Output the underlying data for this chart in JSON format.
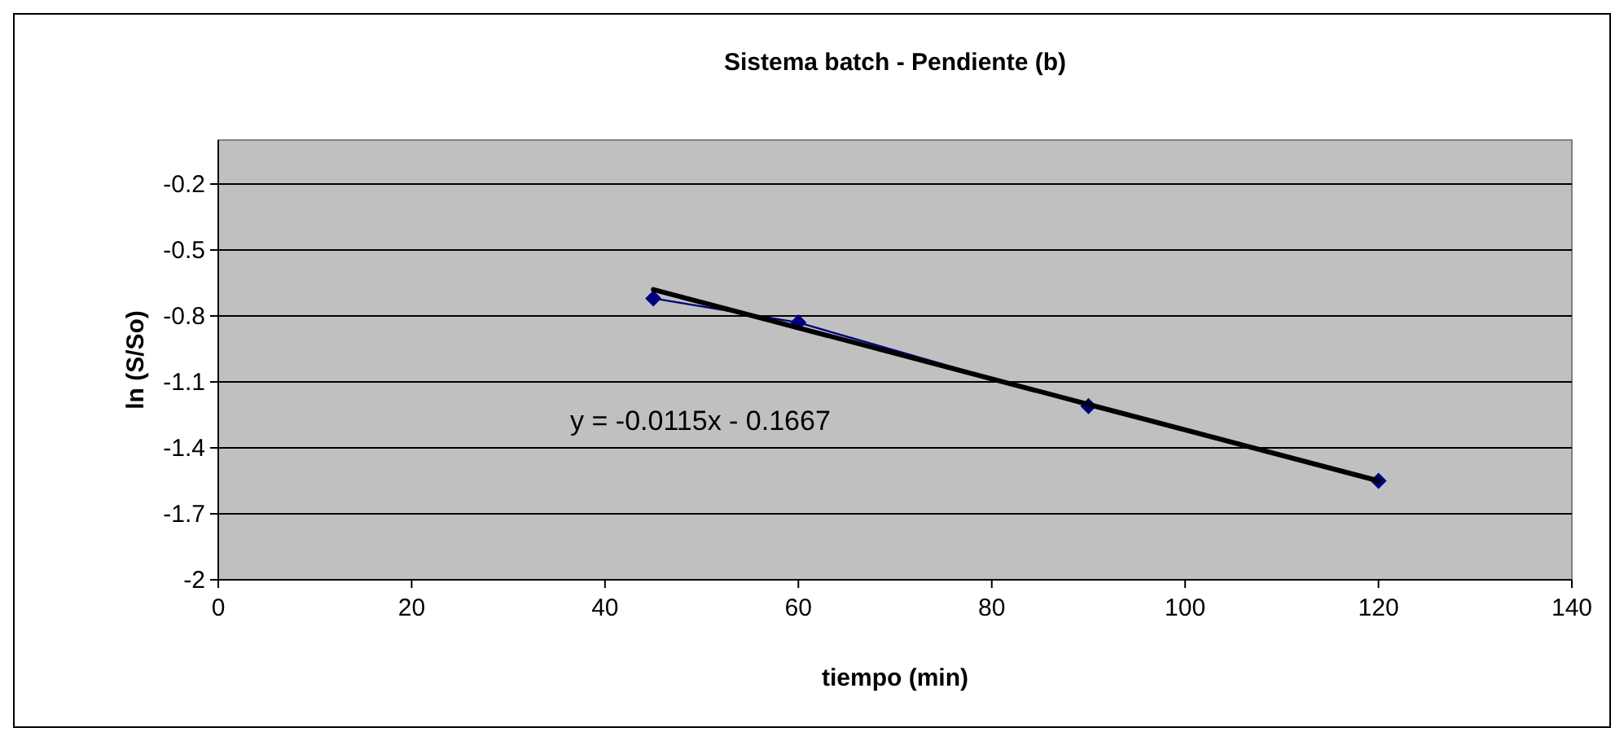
{
  "chart_data": {
    "type": "line",
    "title": "Sistema batch - Pendiente (b)",
    "xlabel": "tiempo (min)",
    "ylabel": "ln (S/So)",
    "x": [
      45,
      60,
      90,
      120
    ],
    "series": [
      {
        "color": "#000080",
        "values": [
          -0.72,
          -0.83,
          -1.21,
          -1.55
        ],
        "marker": "diamond"
      },
      {
        "type": "line",
        "color": "#000000",
        "x": [
          45,
          120
        ],
        "values": [
          -0.68,
          -1.55
        ],
        "marker": "none"
      }
    ],
    "xlim": [
      0,
      140
    ],
    "xticks": [
      0,
      20,
      40,
      60,
      80,
      100,
      120,
      140
    ],
    "ylim": [
      -2,
      0
    ],
    "yticks": [
      -2,
      -1.7,
      -1.4,
      -1.1,
      -0.8,
      -0.5,
      -0.2
    ],
    "grid": "y",
    "annotations": [
      "y = -0.0115x - 0.1667"
    ]
  }
}
